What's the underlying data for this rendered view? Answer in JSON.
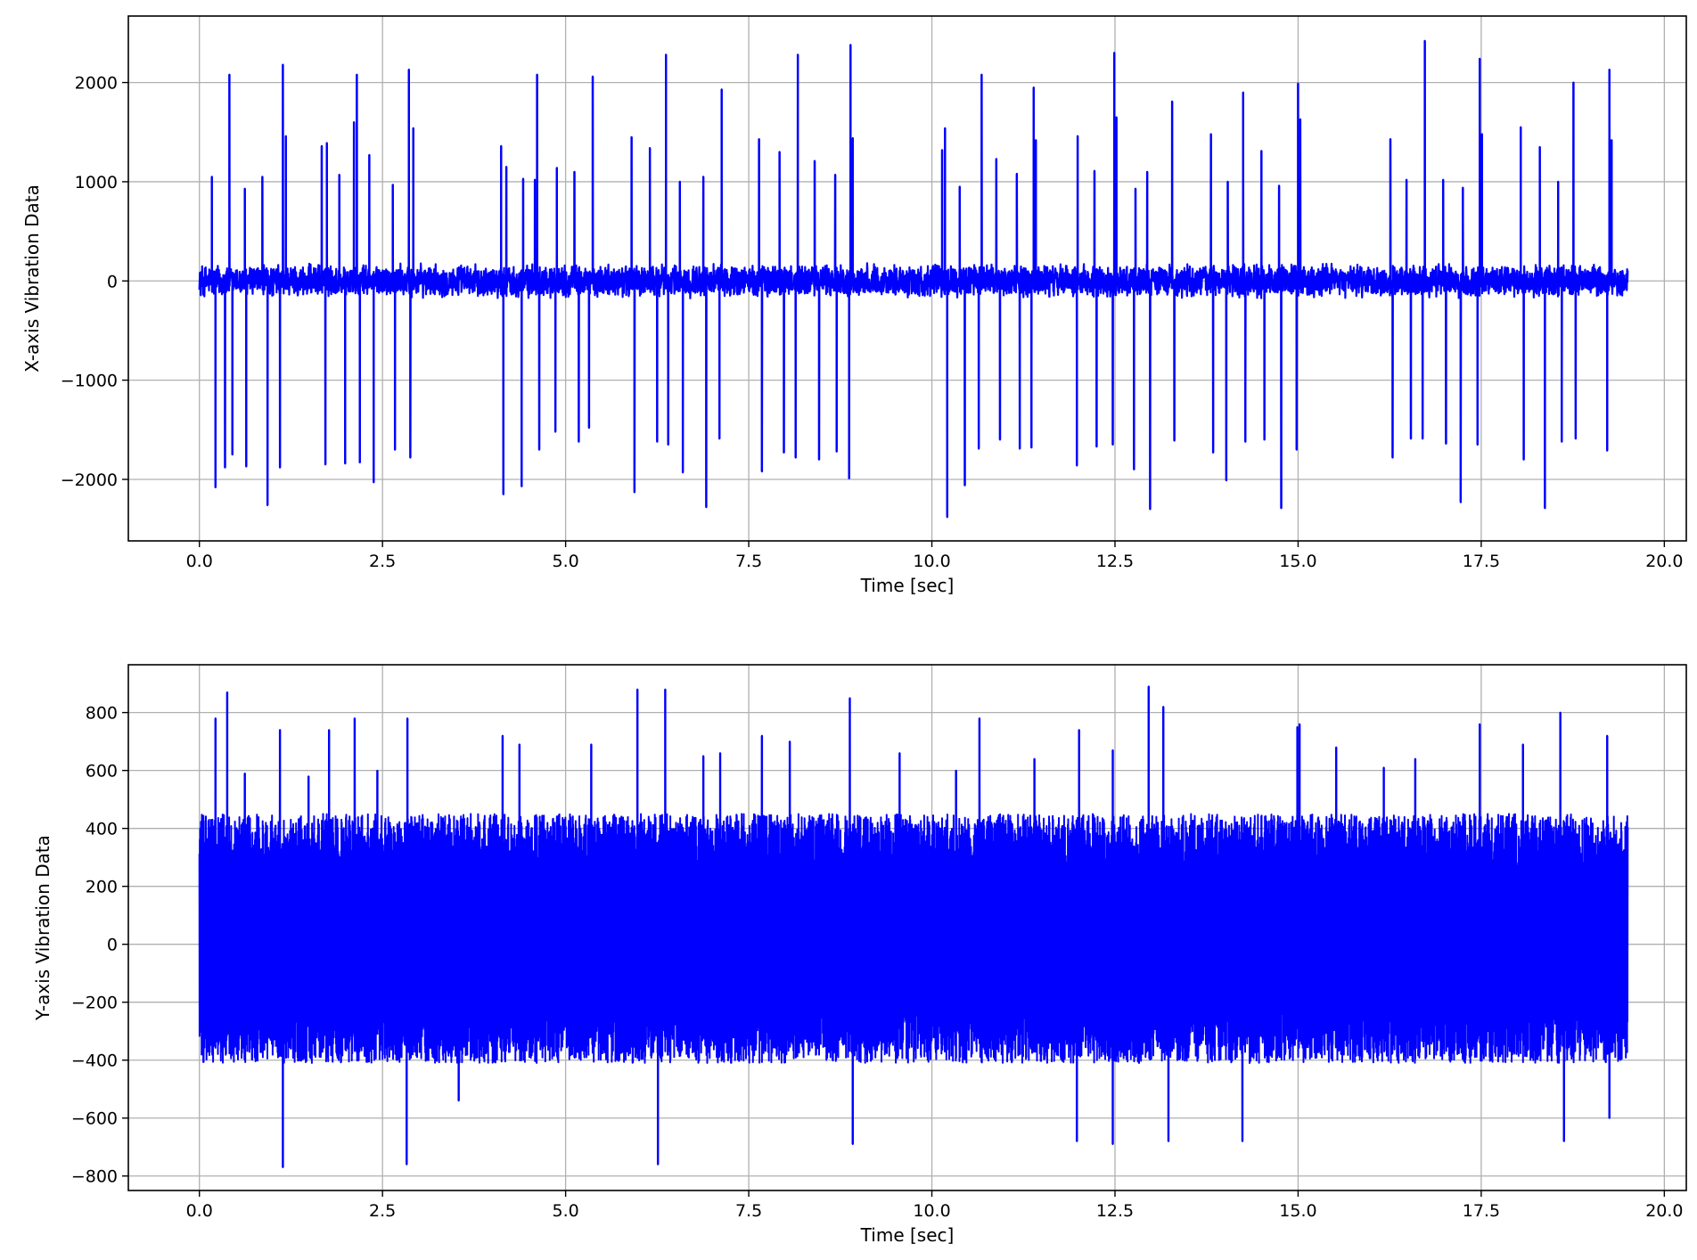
{
  "chart_data": [
    {
      "type": "line",
      "xlabel": "Time [sec]",
      "ylabel": "X-axis Vibration Data",
      "xlim": [
        -0.97,
        20.3
      ],
      "ylim": [
        -2620,
        2670
      ],
      "xticks": [
        0.0,
        2.5,
        5.0,
        7.5,
        10.0,
        12.5,
        15.0,
        17.5,
        20.0
      ],
      "xtick_labels": [
        "0.0",
        "2.5",
        "5.0",
        "7.5",
        "10.0",
        "12.5",
        "15.0",
        "17.5",
        "20.0"
      ],
      "yticks": [
        -2000,
        -1000,
        0,
        1000,
        2000
      ],
      "ytick_labels": [
        "−2000",
        "−1000",
        "0",
        "1000",
        "2000"
      ],
      "grid": true,
      "line_color": "#0000ff",
      "x_range": [
        0.0,
        19.5
      ],
      "baseline_noise_amplitude": 180,
      "spikes": [
        {
          "x": 0.17,
          "y": 1050
        },
        {
          "x": 0.22,
          "y": -2080
        },
        {
          "x": 0.35,
          "y": -1880
        },
        {
          "x": 0.41,
          "y": 2080
        },
        {
          "x": 0.45,
          "y": -1750
        },
        {
          "x": 0.62,
          "y": 930
        },
        {
          "x": 0.64,
          "y": -1870
        },
        {
          "x": 0.86,
          "y": 1050
        },
        {
          "x": 0.93,
          "y": -2260
        },
        {
          "x": 1.1,
          "y": -1880
        },
        {
          "x": 1.14,
          "y": 2180
        },
        {
          "x": 1.18,
          "y": 1460
        },
        {
          "x": 1.67,
          "y": 1360
        },
        {
          "x": 1.72,
          "y": -1850
        },
        {
          "x": 1.74,
          "y": 1390
        },
        {
          "x": 1.91,
          "y": 1070
        },
        {
          "x": 1.99,
          "y": -1840
        },
        {
          "x": 2.11,
          "y": 1600
        },
        {
          "x": 2.15,
          "y": 2080
        },
        {
          "x": 2.19,
          "y": -1830
        },
        {
          "x": 2.32,
          "y": 1270
        },
        {
          "x": 2.38,
          "y": -2030
        },
        {
          "x": 2.64,
          "y": 970
        },
        {
          "x": 2.67,
          "y": -1700
        },
        {
          "x": 2.86,
          "y": 2130
        },
        {
          "x": 2.88,
          "y": -1780
        },
        {
          "x": 2.92,
          "y": 1540
        },
        {
          "x": 4.12,
          "y": 1360
        },
        {
          "x": 4.15,
          "y": -2150
        },
        {
          "x": 4.19,
          "y": 1150
        },
        {
          "x": 4.4,
          "y": -2070
        },
        {
          "x": 4.42,
          "y": 1030
        },
        {
          "x": 4.58,
          "y": 1020
        },
        {
          "x": 4.61,
          "y": 2080
        },
        {
          "x": 4.64,
          "y": -1700
        },
        {
          "x": 4.86,
          "y": -1520
        },
        {
          "x": 4.88,
          "y": 1140
        },
        {
          "x": 5.12,
          "y": 1100
        },
        {
          "x": 5.18,
          "y": -1620
        },
        {
          "x": 5.32,
          "y": -1480
        },
        {
          "x": 5.37,
          "y": 2060
        },
        {
          "x": 5.9,
          "y": 1450
        },
        {
          "x": 5.94,
          "y": -2130
        },
        {
          "x": 6.15,
          "y": 1340
        },
        {
          "x": 6.25,
          "y": -1620
        },
        {
          "x": 6.37,
          "y": 2280
        },
        {
          "x": 6.4,
          "y": -1650
        },
        {
          "x": 6.56,
          "y": 1000
        },
        {
          "x": 6.6,
          "y": -1930
        },
        {
          "x": 6.88,
          "y": 1050
        },
        {
          "x": 6.92,
          "y": -2280
        },
        {
          "x": 7.1,
          "y": -1590
        },
        {
          "x": 7.13,
          "y": 1930
        },
        {
          "x": 7.64,
          "y": 1430
        },
        {
          "x": 7.68,
          "y": -1920
        },
        {
          "x": 7.92,
          "y": 1300
        },
        {
          "x": 7.98,
          "y": -1730
        },
        {
          "x": 8.14,
          "y": -1780
        },
        {
          "x": 8.17,
          "y": 2280
        },
        {
          "x": 8.4,
          "y": 1210
        },
        {
          "x": 8.46,
          "y": -1800
        },
        {
          "x": 8.68,
          "y": 1070
        },
        {
          "x": 8.7,
          "y": -1720
        },
        {
          "x": 8.87,
          "y": -1990
        },
        {
          "x": 8.89,
          "y": 2380
        },
        {
          "x": 8.92,
          "y": 1440
        },
        {
          "x": 10.14,
          "y": 1320
        },
        {
          "x": 10.18,
          "y": 1540
        },
        {
          "x": 10.21,
          "y": -2380
        },
        {
          "x": 10.38,
          "y": 950
        },
        {
          "x": 10.45,
          "y": -2060
        },
        {
          "x": 10.64,
          "y": -1690
        },
        {
          "x": 10.68,
          "y": 2080
        },
        {
          "x": 10.88,
          "y": 1230
        },
        {
          "x": 10.93,
          "y": -1600
        },
        {
          "x": 11.16,
          "y": 1080
        },
        {
          "x": 11.2,
          "y": -1690
        },
        {
          "x": 11.36,
          "y": -1680
        },
        {
          "x": 11.39,
          "y": 1950
        },
        {
          "x": 11.42,
          "y": 1420
        },
        {
          "x": 11.98,
          "y": -1860
        },
        {
          "x": 11.99,
          "y": 1460
        },
        {
          "x": 12.22,
          "y": 1110
        },
        {
          "x": 12.25,
          "y": -1670
        },
        {
          "x": 12.47,
          "y": -1650
        },
        {
          "x": 12.49,
          "y": 2300
        },
        {
          "x": 12.52,
          "y": 1650
        },
        {
          "x": 12.76,
          "y": -1900
        },
        {
          "x": 12.78,
          "y": 930
        },
        {
          "x": 12.94,
          "y": 1100
        },
        {
          "x": 12.98,
          "y": -2300
        },
        {
          "x": 13.28,
          "y": 1810
        },
        {
          "x": 13.31,
          "y": -1610
        },
        {
          "x": 13.81,
          "y": 1480
        },
        {
          "x": 13.84,
          "y": -1730
        },
        {
          "x": 14.02,
          "y": -2010
        },
        {
          "x": 14.04,
          "y": 1000
        },
        {
          "x": 14.25,
          "y": 1900
        },
        {
          "x": 14.28,
          "y": -1620
        },
        {
          "x": 14.5,
          "y": 1310
        },
        {
          "x": 14.54,
          "y": -1600
        },
        {
          "x": 14.74,
          "y": 960
        },
        {
          "x": 14.77,
          "y": -2290
        },
        {
          "x": 14.98,
          "y": -1700
        },
        {
          "x": 15.0,
          "y": 1990
        },
        {
          "x": 15.03,
          "y": 1630
        },
        {
          "x": 16.26,
          "y": 1430
        },
        {
          "x": 16.29,
          "y": -1780
        },
        {
          "x": 16.48,
          "y": 1020
        },
        {
          "x": 16.54,
          "y": -1590
        },
        {
          "x": 16.7,
          "y": -1590
        },
        {
          "x": 16.73,
          "y": 2420
        },
        {
          "x": 16.98,
          "y": 1020
        },
        {
          "x": 17.02,
          "y": -1640
        },
        {
          "x": 17.22,
          "y": -2230
        },
        {
          "x": 17.25,
          "y": 940
        },
        {
          "x": 17.45,
          "y": -1650
        },
        {
          "x": 17.48,
          "y": 2240
        },
        {
          "x": 17.51,
          "y": 1480
        },
        {
          "x": 18.04,
          "y": 1550
        },
        {
          "x": 18.08,
          "y": -1800
        },
        {
          "x": 18.3,
          "y": 1350
        },
        {
          "x": 18.37,
          "y": -2290
        },
        {
          "x": 18.55,
          "y": 1000
        },
        {
          "x": 18.6,
          "y": -1620
        },
        {
          "x": 18.76,
          "y": 2000
        },
        {
          "x": 18.79,
          "y": -1590
        },
        {
          "x": 19.22,
          "y": -1710
        },
        {
          "x": 19.25,
          "y": 2130
        },
        {
          "x": 19.28,
          "y": 1420
        }
      ]
    },
    {
      "type": "line",
      "xlabel": "Time [sec]",
      "ylabel": "Y-axis Vibration Data",
      "xlim": [
        -0.97,
        20.3
      ],
      "ylim": [
        -850,
        965
      ],
      "xticks": [
        0.0,
        2.5,
        5.0,
        7.5,
        10.0,
        12.5,
        15.0,
        17.5,
        20.0
      ],
      "xtick_labels": [
        "0.0",
        "2.5",
        "5.0",
        "7.5",
        "10.0",
        "12.5",
        "15.0",
        "17.5",
        "20.0"
      ],
      "yticks": [
        -800,
        -600,
        -400,
        -200,
        0,
        200,
        400,
        600,
        800
      ],
      "ytick_labels": [
        "−800",
        "−600",
        "−400",
        "−200",
        "0",
        "200",
        "400",
        "600",
        "800"
      ],
      "grid": true,
      "line_color": "#0000ff",
      "x_range": [
        0.0,
        19.5
      ],
      "dense_band": [
        -410,
        450
      ],
      "spikes": [
        {
          "x": 0.22,
          "y": 780
        },
        {
          "x": 0.38,
          "y": 870
        },
        {
          "x": 0.62,
          "y": 590
        },
        {
          "x": 1.1,
          "y": 740
        },
        {
          "x": 1.14,
          "y": -770
        },
        {
          "x": 1.49,
          "y": 580
        },
        {
          "x": 1.77,
          "y": 740
        },
        {
          "x": 2.12,
          "y": 780
        },
        {
          "x": 2.43,
          "y": 600
        },
        {
          "x": 2.84,
          "y": 780
        },
        {
          "x": 2.83,
          "y": -760
        },
        {
          "x": 3.54,
          "y": -540
        },
        {
          "x": 4.14,
          "y": 720
        },
        {
          "x": 4.37,
          "y": 690
        },
        {
          "x": 5.35,
          "y": 690
        },
        {
          "x": 5.98,
          "y": 880
        },
        {
          "x": 6.26,
          "y": -760
        },
        {
          "x": 6.36,
          "y": 880
        },
        {
          "x": 6.88,
          "y": 650
        },
        {
          "x": 7.11,
          "y": 660
        },
        {
          "x": 7.68,
          "y": 720
        },
        {
          "x": 8.06,
          "y": 700
        },
        {
          "x": 8.88,
          "y": 850
        },
        {
          "x": 8.92,
          "y": -690
        },
        {
          "x": 9.56,
          "y": 660
        },
        {
          "x": 10.33,
          "y": 600
        },
        {
          "x": 10.65,
          "y": 780
        },
        {
          "x": 11.4,
          "y": 640
        },
        {
          "x": 11.98,
          "y": -680
        },
        {
          "x": 12.01,
          "y": 740
        },
        {
          "x": 12.47,
          "y": -690
        },
        {
          "x": 12.47,
          "y": 670
        },
        {
          "x": 12.96,
          "y": 890
        },
        {
          "x": 13.16,
          "y": 820
        },
        {
          "x": 13.23,
          "y": -680
        },
        {
          "x": 14.24,
          "y": -680
        },
        {
          "x": 14.99,
          "y": 750
        },
        {
          "x": 15.02,
          "y": 760
        },
        {
          "x": 15.52,
          "y": 680
        },
        {
          "x": 16.17,
          "y": 610
        },
        {
          "x": 16.6,
          "y": 640
        },
        {
          "x": 17.48,
          "y": 760
        },
        {
          "x": 18.07,
          "y": 690
        },
        {
          "x": 18.58,
          "y": 800
        },
        {
          "x": 18.63,
          "y": -680
        },
        {
          "x": 19.22,
          "y": 720
        },
        {
          "x": 19.25,
          "y": -600
        }
      ]
    }
  ]
}
